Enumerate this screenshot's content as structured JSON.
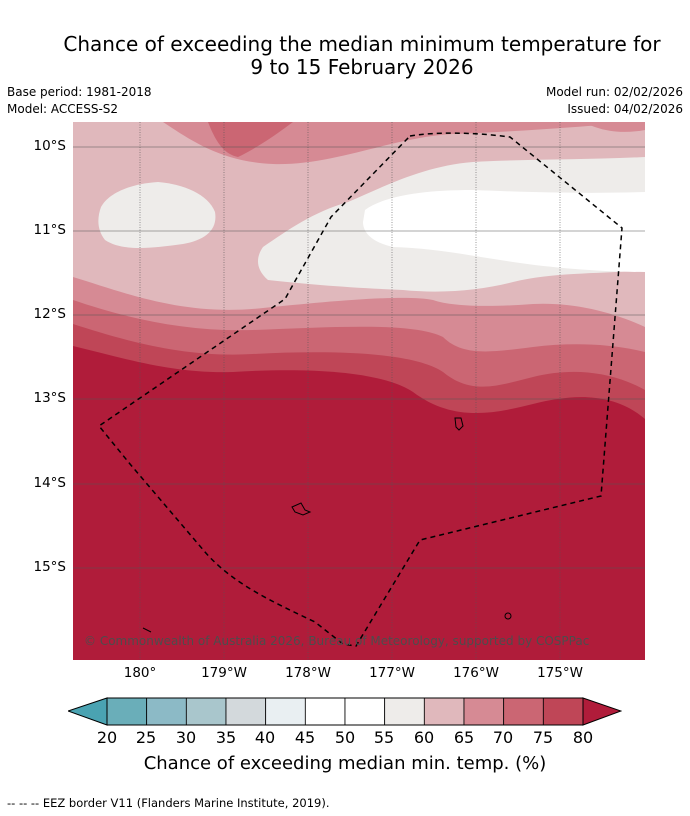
{
  "header": {
    "title_line1": "Chance of exceeding the median minimum temperature for",
    "title_line2": "9 to 15 February 2026",
    "base_period": "Base period: 1981-2018",
    "model": "Model: ACCESS-S2",
    "model_run": "Model run: 02/02/2026",
    "issued": "Issued: 04/02/2026"
  },
  "map": {
    "lat_labels": [
      "10°S",
      "11°S",
      "12°S",
      "13°S",
      "14°S",
      "15°S"
    ],
    "lon_labels": [
      "180°",
      "179°W",
      "178°W",
      "177°W",
      "176°W",
      "175°W"
    ],
    "copyright": "© Commonwealth of Australia 2026, Bureau of Meteorology, supported by COSPPac",
    "land_color": "#b01c3a",
    "overlay_line_color": "#000000"
  },
  "colorbar": {
    "labels": [
      "20",
      "25",
      "30",
      "35",
      "40",
      "45",
      "50",
      "55",
      "60",
      "65",
      "70",
      "75",
      "80"
    ],
    "colors": [
      "#6aaeb9",
      "#8cbac6",
      "#a9c6cc",
      "#d3d9dc",
      "#e9eff2",
      "#ffffff",
      "#ffffff",
      "#eeecea",
      "#e0b8bc",
      "#d68a94",
      "#cb6673",
      "#bf4657"
    ],
    "under_color": "#4aa3b2",
    "over_color": "#b01c3a",
    "title": "Chance of exceeding median min. temp. (%)"
  },
  "footnote": "--  --  -- EEZ border V11 (Flanders Marine Institute, 2019)."
}
